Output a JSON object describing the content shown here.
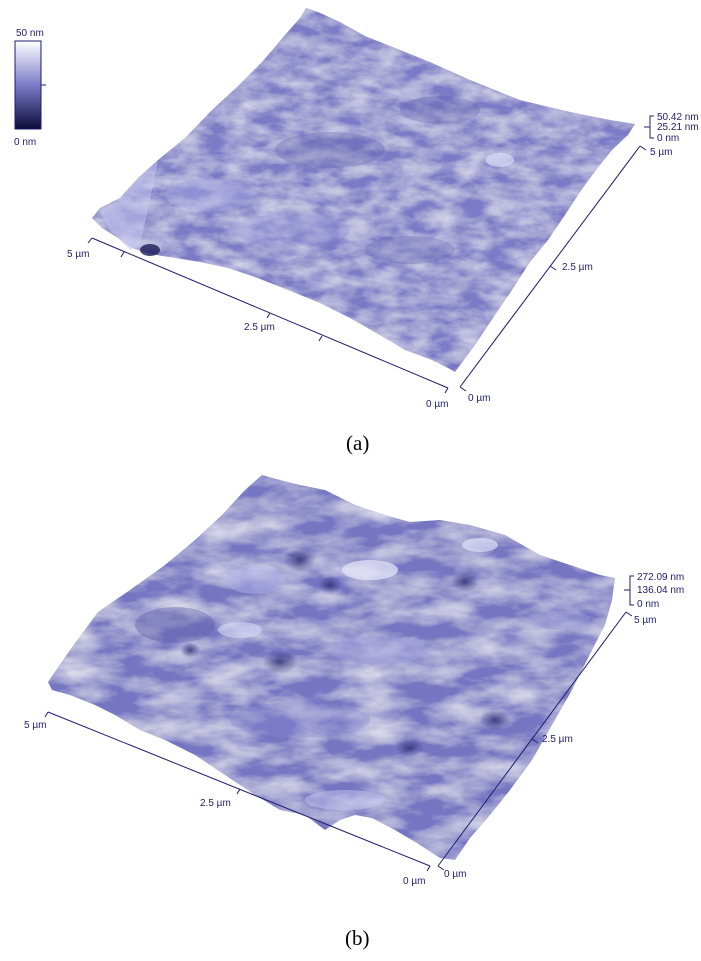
{
  "panel_a": {
    "caption": "(a)",
    "colorbar": {
      "top_label": "50 nm",
      "bottom_label": "0 nm"
    },
    "z_scale": {
      "max": "50.42 nm",
      "mid": "25.21 nm",
      "min": "0 nm"
    },
    "x_axis": {
      "start": "5 µm",
      "mid": "2.5 µm",
      "end": "0 µm"
    },
    "y_axis": {
      "start": "0 µm",
      "mid": "2.5 µm",
      "end": "5 µm"
    },
    "surface_color": "#7a7ac6"
  },
  "panel_b": {
    "caption": "(b)",
    "z_scale": {
      "max": "272.09 nm",
      "mid": "136.04 nm",
      "min": "0 nm"
    },
    "x_axis": {
      "start": "5 µm",
      "mid": "2.5 µm",
      "end": "0 µm"
    },
    "y_axis": {
      "start": "0 µm",
      "mid": "2.5 µm",
      "end": "5 µm"
    },
    "surface_color": "#7474c2"
  },
  "colors": {
    "axis": "#1c1c6e",
    "surface_light": "#b8b8ea",
    "surface_dark": "#4a4a9a"
  }
}
